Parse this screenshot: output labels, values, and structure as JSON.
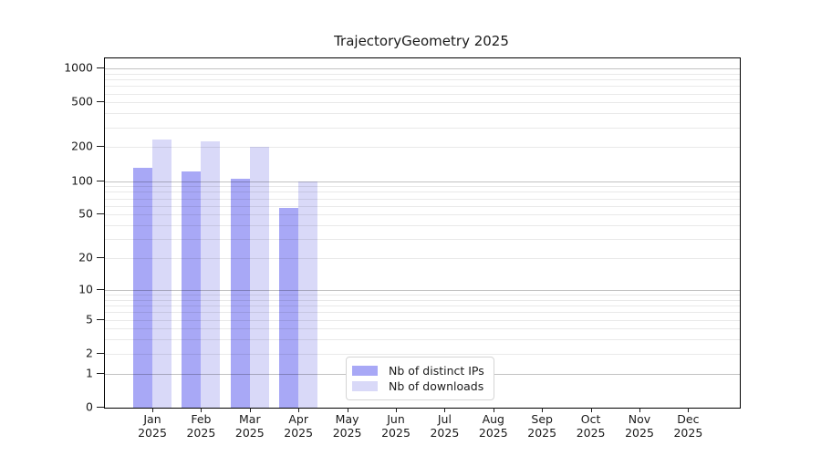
{
  "title": "TrajectoryGeometry 2025",
  "chart_data": {
    "type": "bar",
    "title": "TrajectoryGeometry 2025",
    "scale": "log10(value+1)",
    "ylim": [
      0,
      1000
    ],
    "grid": "horizontal",
    "legend_position": "lower center",
    "categories": [
      "Jan",
      "Feb",
      "Mar",
      "Apr",
      "May",
      "Jun",
      "Jul",
      "Aug",
      "Sep",
      "Oct",
      "Nov",
      "Dec"
    ],
    "category_year_label": "2025",
    "yticks": [
      1000,
      500,
      200,
      100,
      50,
      20,
      10,
      5,
      2,
      1,
      0
    ],
    "series": [
      {
        "name": "Nb of distinct IPs",
        "color": "#a8a8f6",
        "values": [
          132,
          121,
          104,
          57,
          null,
          null,
          null,
          null,
          null,
          null,
          null,
          null
        ]
      },
      {
        "name": "Nb of downloads",
        "color": "#d9d9f8",
        "values": [
          234,
          224,
          200,
          100,
          null,
          null,
          null,
          null,
          null,
          null,
          null,
          null
        ]
      }
    ],
    "colors": {
      "axis": "#000000",
      "major_gridline": "#c3c3c3",
      "minor_gridline": "#ebebeb",
      "text": "#1a1a1a",
      "background": "#ffffff"
    }
  }
}
